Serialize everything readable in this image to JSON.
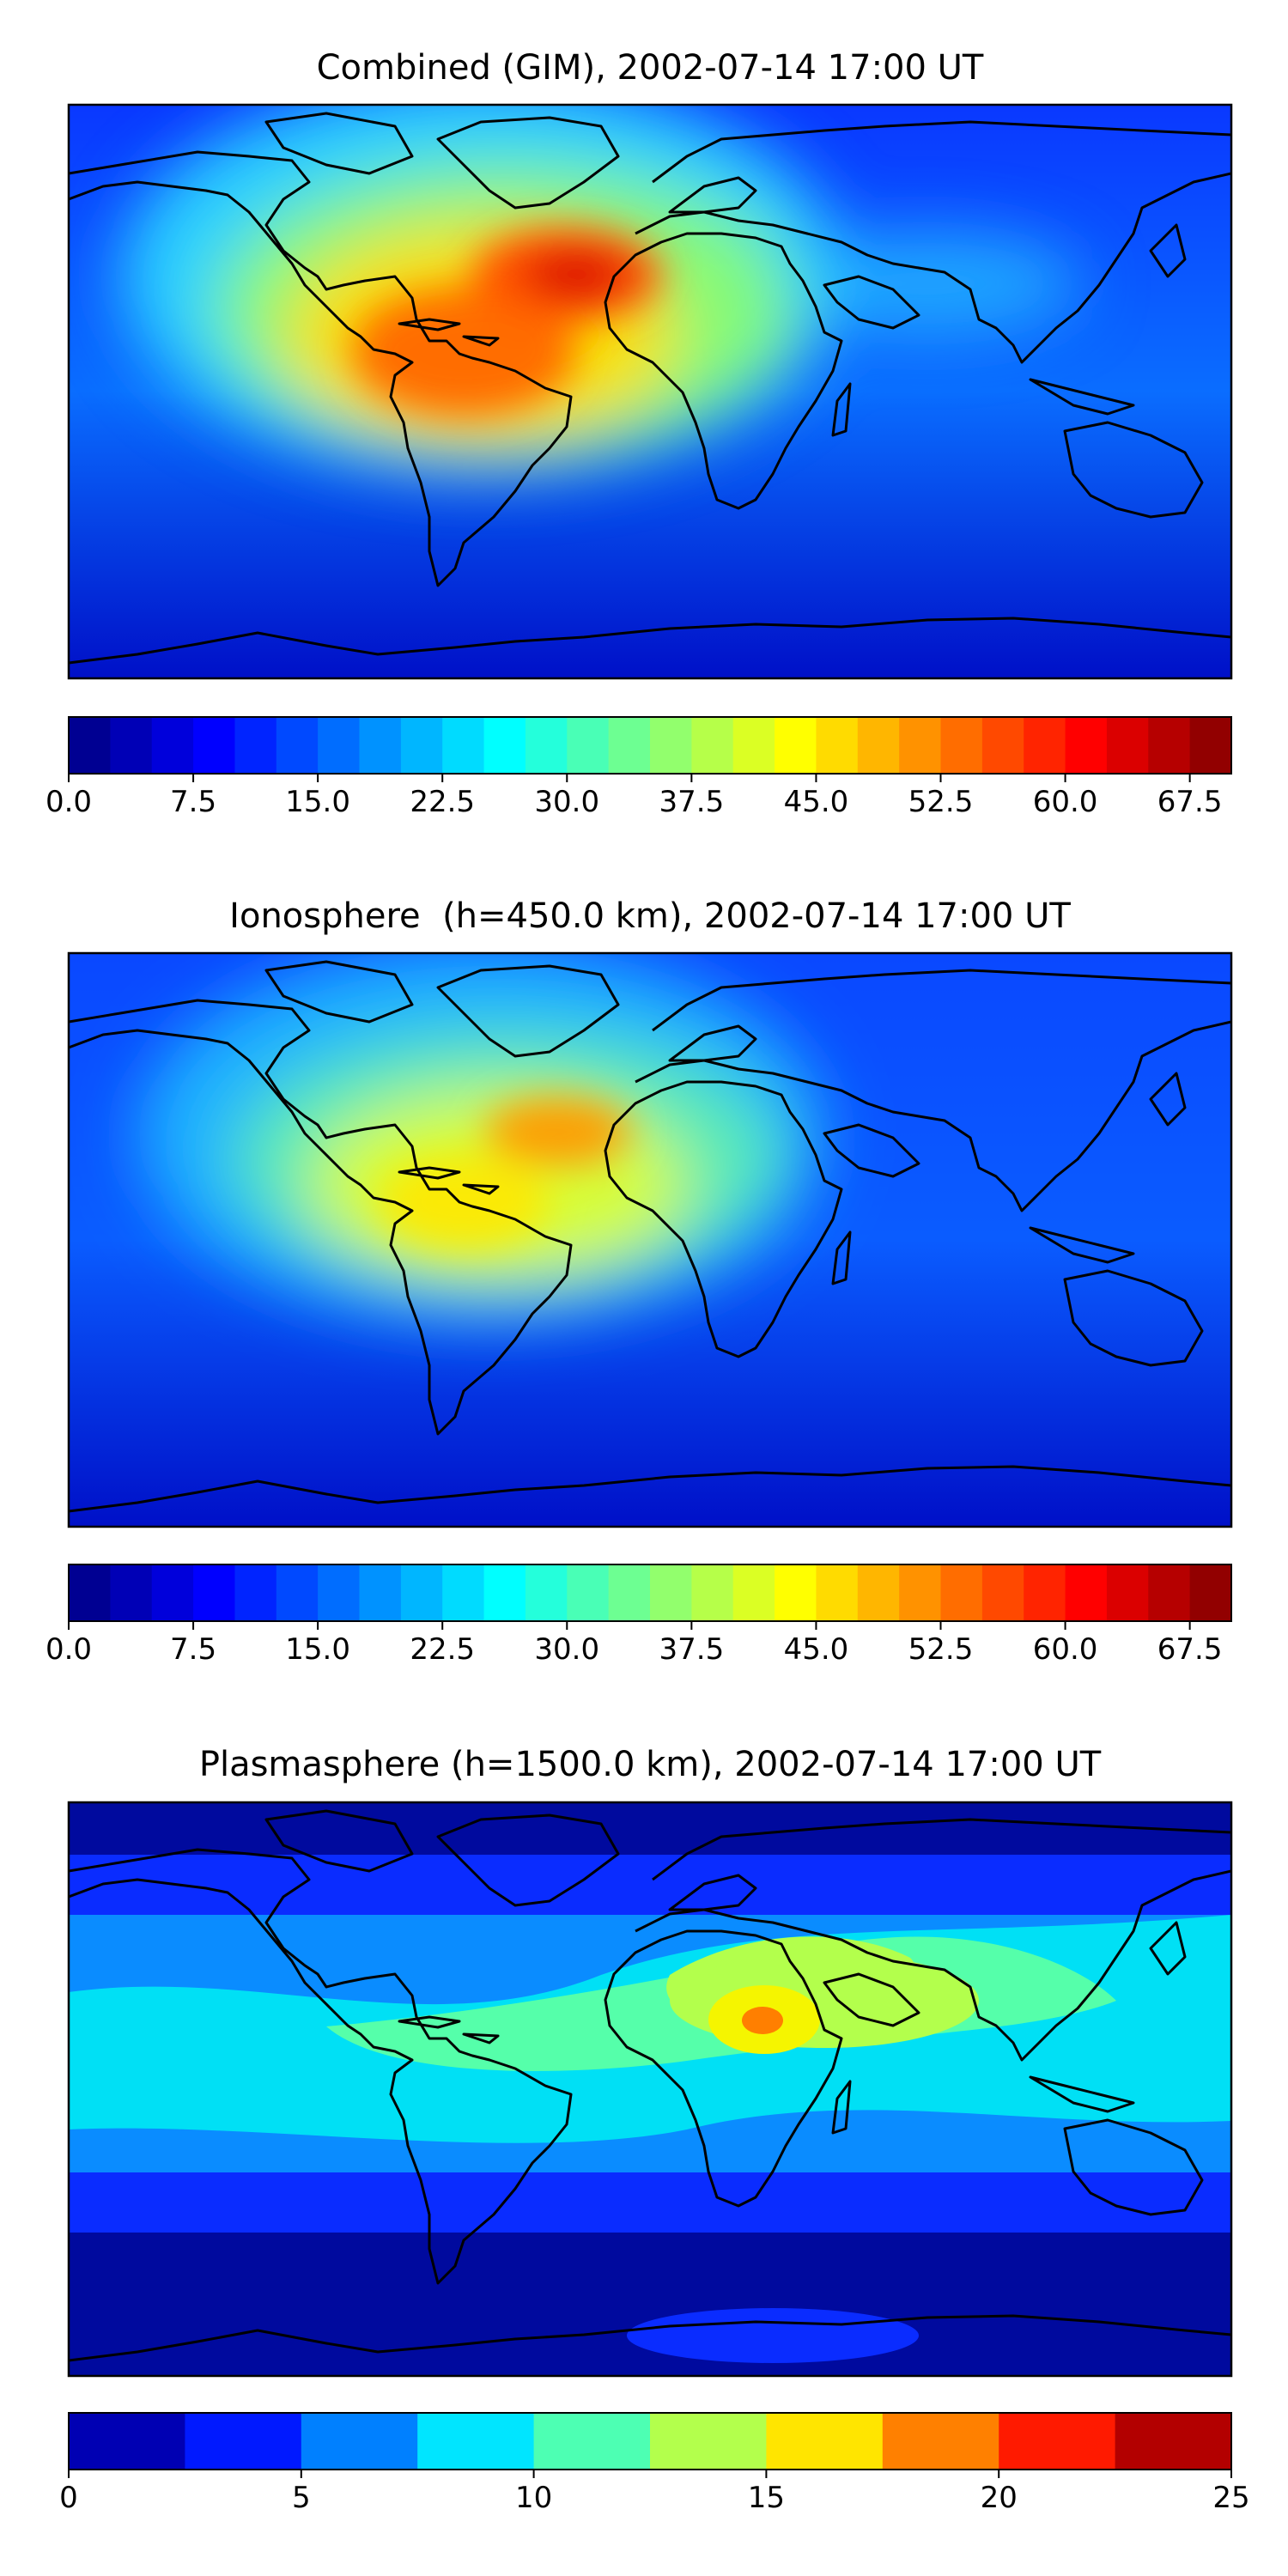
{
  "chart_data": [
    {
      "type": "heatmap",
      "title": "Combined (GIM), 2002-07-14 17:00 UT",
      "colorbar": {
        "ticks": [
          "0.0",
          "7.5",
          "15.0",
          "22.5",
          "30.0",
          "37.5",
          "45.0",
          "52.5",
          "60.0",
          "67.5"
        ],
        "range": [
          0,
          70
        ],
        "levels": 28,
        "colormap": "jet"
      },
      "hotspots": [
        {
          "region": "tropical Atlantic west of Africa",
          "lon": -5,
          "lat": 8,
          "value": 66
        },
        {
          "region": "central South America",
          "lon": -55,
          "lat": -12,
          "value": 58
        },
        {
          "region": "northern South America",
          "lon": -65,
          "lat": 2,
          "value": 50
        }
      ]
    },
    {
      "type": "heatmap",
      "title": "Ionosphere  (h=450.0 km), 2002-07-14 17:00 UT",
      "colorbar": {
        "ticks": [
          "0.0",
          "7.5",
          "15.0",
          "22.5",
          "30.0",
          "37.5",
          "45.0",
          "52.5",
          "60.0",
          "67.5"
        ],
        "range": [
          0,
          70
        ],
        "levels": 28,
        "colormap": "jet"
      },
      "hotspots": [
        {
          "region": "tropical Atlantic west of Africa",
          "lon": -10,
          "lat": 5,
          "value": 53
        },
        {
          "region": "central South America",
          "lon": -55,
          "lat": -15,
          "value": 44
        }
      ]
    },
    {
      "type": "heatmap",
      "title": "Plasmasphere (h=1500.0 km), 2002-07-14 17:00 UT",
      "colorbar": {
        "ticks": [
          "0",
          "5",
          "10",
          "15",
          "20",
          "25"
        ],
        "range": [
          0,
          25
        ],
        "levels": 10,
        "colormap": "jet"
      },
      "hotspots": [
        {
          "region": "Red Sea / Arabian Peninsula",
          "lon": 38,
          "lat": 15,
          "value": 21
        },
        {
          "region": "Sahara to Arabian Sea band",
          "lon": 40,
          "lat": 18,
          "value": 16
        }
      ]
    }
  ]
}
